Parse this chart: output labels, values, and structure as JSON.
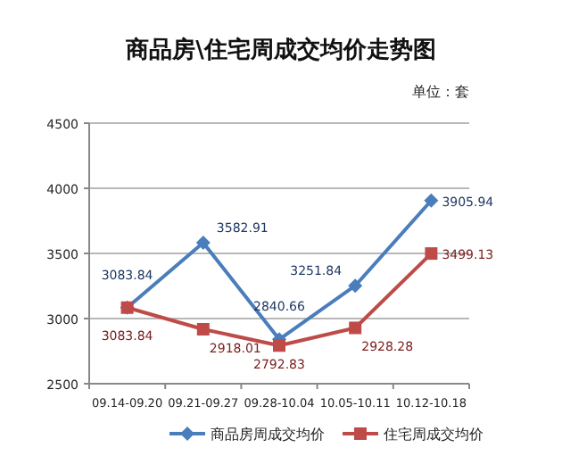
{
  "chart_data": {
    "type": "line",
    "title": "商品房\\住宅周成交均价走势图",
    "annotations": [
      "单位：套"
    ],
    "categories": [
      "09.14-09.20",
      "09.21-09.27",
      "09.28-10.04",
      "10.05-10.11",
      "10.12-10.18"
    ],
    "series": [
      {
        "name": "商品房周成交均价",
        "color": "#4a7ebb",
        "marker": "diamond",
        "values": [
          3083.84,
          3582.91,
          2840.66,
          3251.84,
          3905.94
        ]
      },
      {
        "name": "住宅周成交均价",
        "color": "#be4b48",
        "marker": "square",
        "values": [
          3083.84,
          2918.01,
          2792.83,
          2928.28,
          3499.13
        ]
      }
    ],
    "ylim": [
      2500,
      4500
    ],
    "yticks": [
      2500,
      3000,
      3500,
      4000,
      4500
    ],
    "grid": "y",
    "legend": "bottom",
    "data_labels": true
  }
}
